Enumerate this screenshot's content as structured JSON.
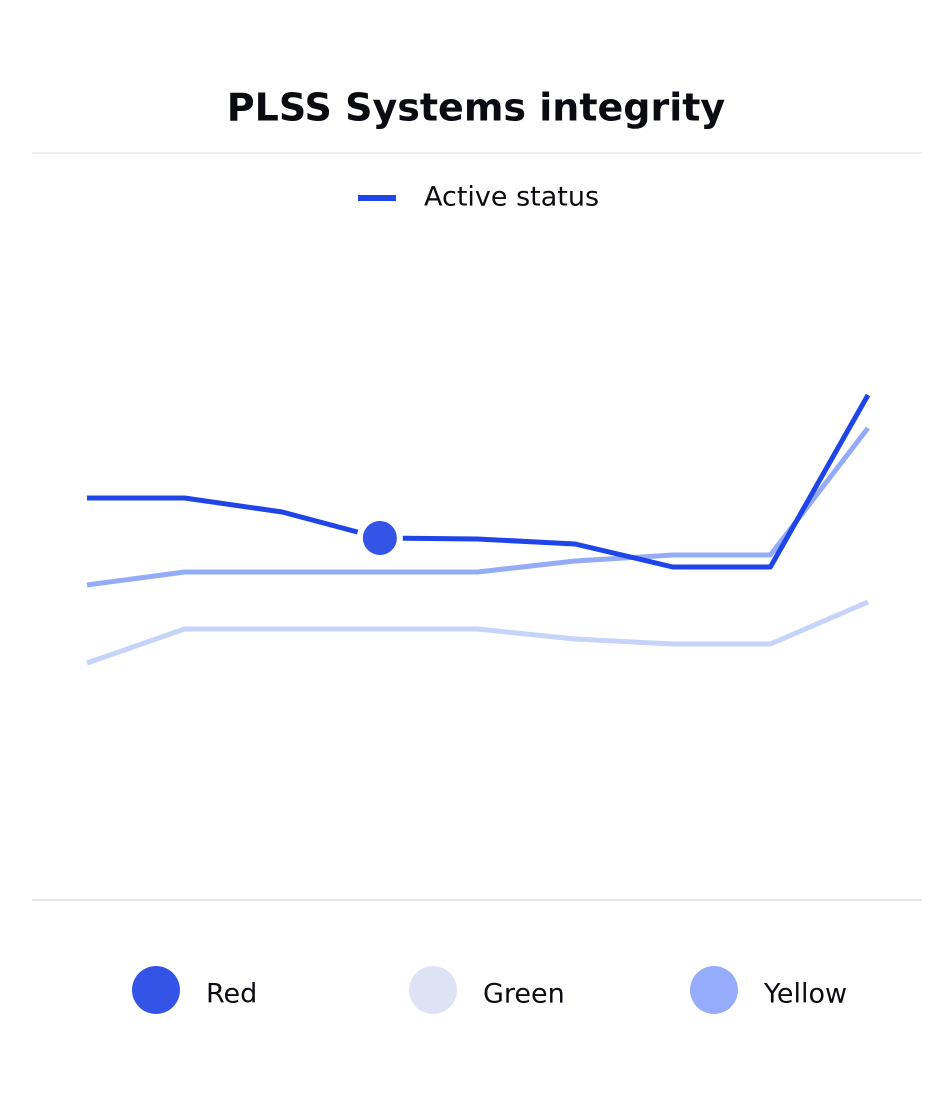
{
  "chart_data": {
    "type": "line",
    "title": "PLSS Systems integrity",
    "legend_title": "Active status",
    "categories": [
      null,
      null,
      null,
      null,
      null,
      null,
      null,
      null,
      null
    ],
    "highlight": {
      "series": 0,
      "index": 3
    },
    "series": [
      {
        "name": "Red",
        "color": "#1f45e8",
        "legend_color": "#3354e6",
        "values": [
          80.4,
          80.4,
          77.6,
          72.4,
          72.2,
          71.2,
          66.6,
          66.6,
          101
        ]
      },
      {
        "name": "Green",
        "color": "#c6d3fb",
        "legend_color": "#dde3f5",
        "values": [
          47.4,
          54.2,
          54.2,
          54.2,
          54.2,
          52.2,
          51.2,
          51.2,
          59.6
        ]
      },
      {
        "name": "Yellow",
        "color": "#94acf8",
        "legend_color": "#94acfb",
        "values": [
          63,
          65.6,
          65.6,
          65.6,
          65.6,
          67.8,
          69,
          69,
          94.4
        ]
      }
    ]
  }
}
